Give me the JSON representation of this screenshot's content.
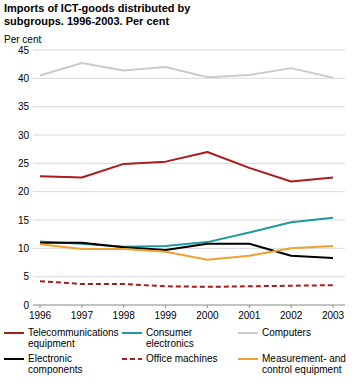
{
  "chart_data": {
    "type": "line",
    "title": "Imports of ICT-goods distributed by subgroups. 1996-2003. Per cent",
    "y_label": "Per cent",
    "categories": [
      "1996",
      "1997",
      "1998",
      "1999",
      "2000",
      "2001",
      "2002",
      "2003"
    ],
    "ylim": [
      0,
      45
    ],
    "yticks": [
      0,
      5,
      10,
      15,
      20,
      25,
      30,
      35,
      40,
      45
    ],
    "grid": true,
    "legend": "bottom",
    "series": [
      {
        "name": "Telecommunications equipment",
        "color": "#a81c1c",
        "line_style": "solid",
        "values": [
          22.7,
          22.5,
          24.9,
          25.3,
          27.0,
          24.2,
          21.8,
          22.5
        ]
      },
      {
        "name": "Consumer electronics",
        "color": "#1f9a9e",
        "line_style": "solid",
        "values": [
          11.2,
          10.8,
          10.3,
          10.4,
          11.1,
          12.8,
          14.6,
          15.4
        ]
      },
      {
        "name": "Computers",
        "color": "#cbcbcb",
        "line_style": "solid",
        "values": [
          40.5,
          42.7,
          41.4,
          42.0,
          40.2,
          40.6,
          41.8,
          40.1
        ]
      },
      {
        "name": "Electronic components",
        "color": "#000000",
        "line_style": "solid",
        "values": [
          11.0,
          11.0,
          10.2,
          9.7,
          10.8,
          10.8,
          8.7,
          8.3
        ]
      },
      {
        "name": "Office machines",
        "color": "#a81c1c",
        "line_style": "dashed",
        "values": [
          4.2,
          3.7,
          3.7,
          3.3,
          3.2,
          3.3,
          3.4,
          3.5
        ]
      },
      {
        "name": "Measurement- and control equipment",
        "color": "#f0a030",
        "line_style": "solid",
        "values": [
          10.7,
          9.9,
          9.9,
          9.4,
          8.0,
          8.7,
          10.0,
          10.4
        ]
      }
    ]
  }
}
